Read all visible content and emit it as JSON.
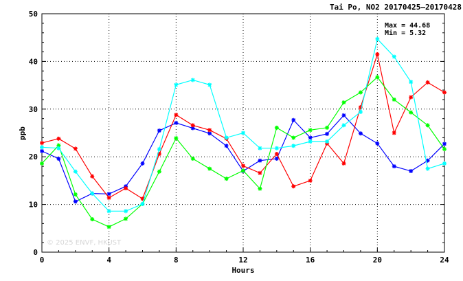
{
  "chart_data": {
    "type": "line",
    "title": "Tai Po, NO2 20170425—20170428",
    "xlabel": "Hours",
    "ylabel": "ppb",
    "xlim": [
      0,
      24
    ],
    "ylim": [
      0,
      50
    ],
    "xticks": [
      0,
      4,
      8,
      12,
      16,
      20,
      24
    ],
    "yticks": [
      0,
      10,
      20,
      30,
      40,
      50
    ],
    "grid": true,
    "grid_style": "dotted",
    "stats": {
      "max_label": "Max = 44.68",
      "min_label": "Min =  5.32"
    },
    "watermark": "© 2025 ENVF, HKUST",
    "x": [
      0,
      1,
      2,
      3,
      4,
      5,
      6,
      7,
      8,
      9,
      10,
      11,
      12,
      13,
      14,
      15,
      16,
      17,
      18,
      19,
      20,
      21,
      22,
      23,
      24
    ],
    "series": [
      {
        "color": "#0000ff",
        "values": [
          21.2,
          19.6,
          10.6,
          12.3,
          12.2,
          13.8,
          18.6,
          25.5,
          27.1,
          26.0,
          24.9,
          22.3,
          17.0,
          19.2,
          19.6,
          27.7,
          24.0,
          24.8,
          28.7,
          24.9,
          22.8,
          18.0,
          17.0,
          19.2,
          22.7
        ]
      },
      {
        "color": "#ff0000",
        "values": [
          22.9,
          23.8,
          21.7,
          15.9,
          11.4,
          13.4,
          11.2,
          20.6,
          28.8,
          26.6,
          25.6,
          23.8,
          18.1,
          16.6,
          20.6,
          13.8,
          15.0,
          22.8,
          18.6,
          30.4,
          41.5,
          25.0,
          32.5,
          35.6,
          33.5
        ]
      },
      {
        "color": "#00ff00",
        "values": [
          18.6,
          22.4,
          12.1,
          6.9,
          5.3,
          7.0,
          10.1,
          16.9,
          23.9,
          19.6,
          17.5,
          15.4,
          17.1,
          13.3,
          26.1,
          24.0,
          25.6,
          26.1,
          31.4,
          33.5,
          36.7,
          32.0,
          29.3,
          26.6,
          21.6
        ]
      },
      {
        "color": "#00ffff",
        "values": [
          22.0,
          21.8,
          16.9,
          12.3,
          8.6,
          8.6,
          10.1,
          21.6,
          35.1,
          36.1,
          35.1,
          24.0,
          25.0,
          21.8,
          21.8,
          22.3,
          23.2,
          23.2,
          26.6,
          29.4,
          44.7,
          41.0,
          35.7,
          17.5,
          18.6
        ]
      }
    ]
  }
}
